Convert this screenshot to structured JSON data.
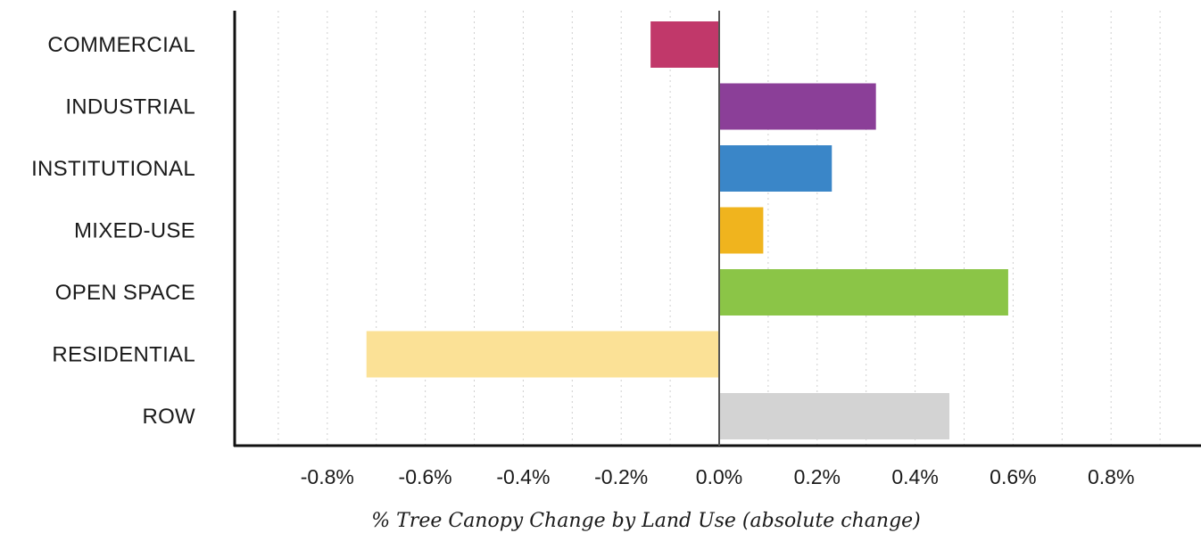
{
  "chart_data": {
    "type": "bar",
    "orientation": "horizontal",
    "categories": [
      "COMMERCIAL",
      "INDUSTRIAL",
      "INSTITUTIONAL",
      "MIXED-USE",
      "OPEN SPACE",
      "RESIDENTIAL",
      "ROW"
    ],
    "values": [
      -0.14,
      0.32,
      0.23,
      0.09,
      0.59,
      -0.72,
      0.47
    ],
    "colors": [
      "#c1386a",
      "#8b3f98",
      "#3a86c8",
      "#f0b41e",
      "#8bc547",
      "#fbe196",
      "#d3d3d3"
    ],
    "xlabel": "% Tree Canopy Change by Land Use (absolute change)",
    "xlim": [
      -1.0,
      1.0
    ],
    "xticks": [
      -0.8,
      -0.6,
      -0.4,
      -0.2,
      0.0,
      0.2,
      0.4,
      0.6,
      0.8
    ],
    "xtick_labels": [
      "-0.8%",
      "-0.6%",
      "-0.4%",
      "-0.2%",
      "0.0%",
      "0.2%",
      "0.4%",
      "0.6%",
      "0.8%"
    ],
    "grid": "vertical dotted",
    "legend": "none"
  }
}
